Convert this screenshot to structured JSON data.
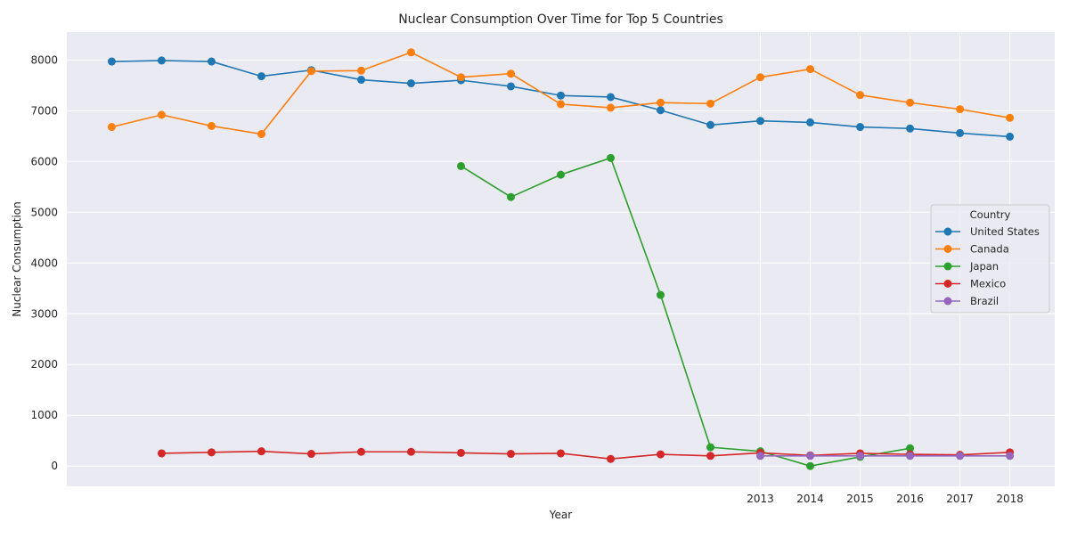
{
  "chart_data": {
    "type": "line",
    "title": "Nuclear Consumption Over Time for Top 5 Countries",
    "xlabel": "Year",
    "ylabel": "Nuclear Consumption",
    "x": [
      2000,
      2001,
      2002,
      2003,
      2004,
      2005,
      2006,
      2007,
      2008,
      2009,
      2010,
      2011,
      2012,
      2013,
      2014,
      2015,
      2016,
      2017,
      2018
    ],
    "x_tick_labels": [
      "2013",
      "2014",
      "2015",
      "2016",
      "2017",
      "2018"
    ],
    "x_tick_values": [
      2013,
      2014,
      2015,
      2016,
      2017,
      2018
    ],
    "xlim": [
      1999.1,
      2018.9
    ],
    "ylim": [
      -400,
      8550
    ],
    "y_ticks": [
      0,
      1000,
      2000,
      3000,
      4000,
      5000,
      6000,
      7000,
      8000
    ],
    "y_tick_labels": [
      "0",
      "1000",
      "2000",
      "3000",
      "4000",
      "5000",
      "6000",
      "7000",
      "8000"
    ],
    "grid": true,
    "legend_title": "Country",
    "legend_position": "center-right",
    "series": [
      {
        "name": "United States",
        "color": "#1f77b4",
        "values": [
          7970,
          7990,
          7970,
          7680,
          7800,
          7610,
          7540,
          7600,
          7480,
          7300,
          7270,
          7010,
          6720,
          6800,
          6770,
          6680,
          6650,
          6560,
          6490
        ]
      },
      {
        "name": "Canada",
        "color": "#ff7f0e",
        "values": [
          6680,
          6920,
          6700,
          6540,
          7780,
          7790,
          8150,
          7660,
          7730,
          7130,
          7060,
          7160,
          7140,
          7660,
          7820,
          7310,
          7160,
          7030,
          6860
        ]
      },
      {
        "name": "Japan",
        "color": "#2ca02c",
        "values": [
          null,
          null,
          null,
          null,
          null,
          null,
          null,
          5910,
          5300,
          5740,
          6070,
          3370,
          370,
          290,
          0,
          180,
          350,
          null,
          null
        ]
      },
      {
        "name": "Mexico",
        "color": "#d62728",
        "values": [
          null,
          250,
          270,
          290,
          240,
          280,
          280,
          260,
          240,
          250,
          140,
          230,
          200,
          260,
          210,
          250,
          230,
          220,
          270
        ]
      },
      {
        "name": "Brazil",
        "color": "#9467bd",
        "values": [
          null,
          null,
          null,
          null,
          null,
          null,
          null,
          null,
          null,
          null,
          null,
          null,
          null,
          200,
          200,
          200,
          200,
          200,
          200
        ]
      }
    ]
  }
}
